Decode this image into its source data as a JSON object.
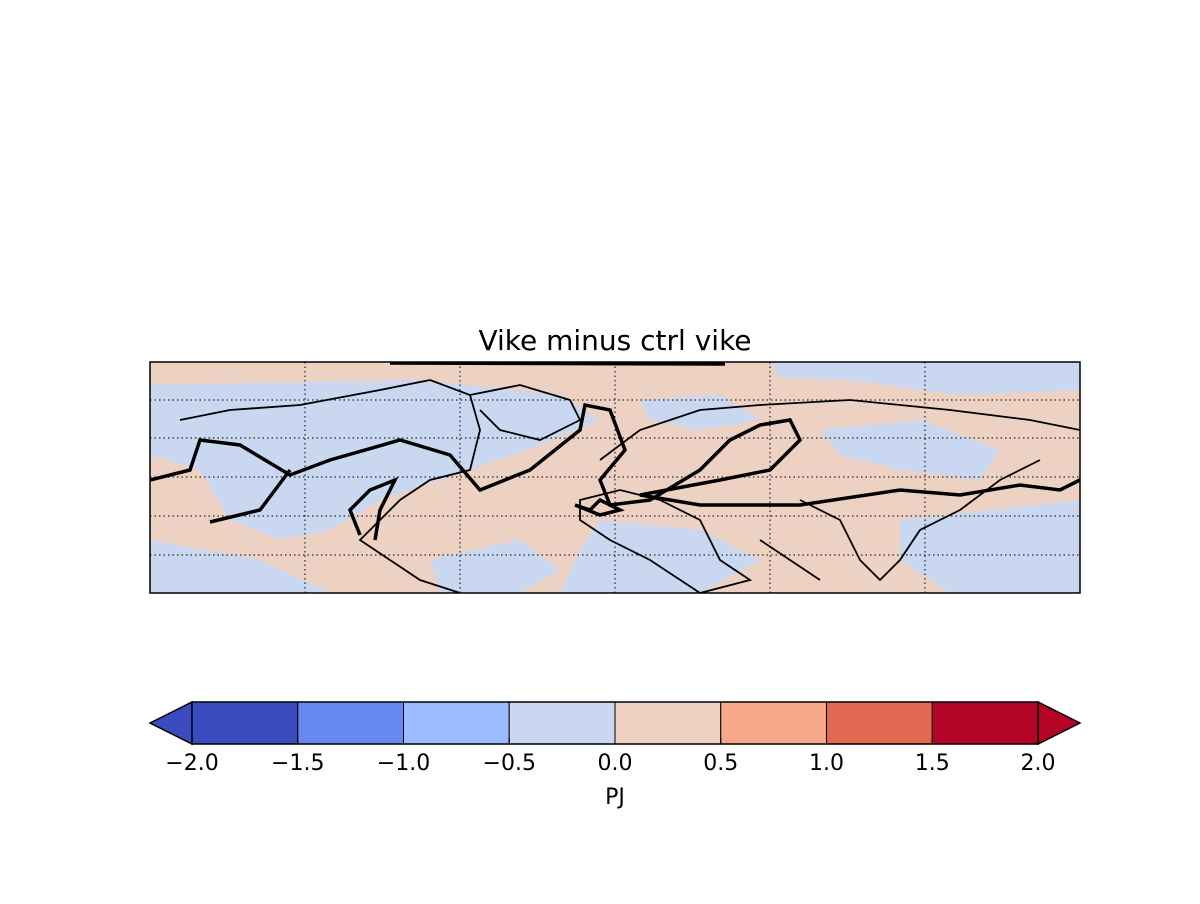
{
  "title": "Vike minus ctrl vike",
  "colorbar": {
    "lim": [
      -2,
      2
    ],
    "ticks": [
      {
        "value": -2,
        "label": "−2.0"
      },
      {
        "value": -1.5,
        "label": "−1.5"
      },
      {
        "value": -1,
        "label": "−1.0"
      },
      {
        "value": -0.5,
        "label": "−0.5"
      },
      {
        "value": 0,
        "label": "0.0"
      },
      {
        "value": 0.5,
        "label": "0.5"
      },
      {
        "value": 1,
        "label": "1.0"
      },
      {
        "value": 1.5,
        "label": "1.5"
      },
      {
        "value": 2,
        "label": "2.0"
      }
    ],
    "colors": [
      "#3b4cc0",
      "#6788ee",
      "#9abbff",
      "#c9d7f0",
      "#edd1c2",
      "#f7a889",
      "#e26952",
      "#b40426"
    ],
    "extend_colors": [
      "#3b4cc0",
      "#b40426"
    ],
    "label": "PJ"
  }
}
